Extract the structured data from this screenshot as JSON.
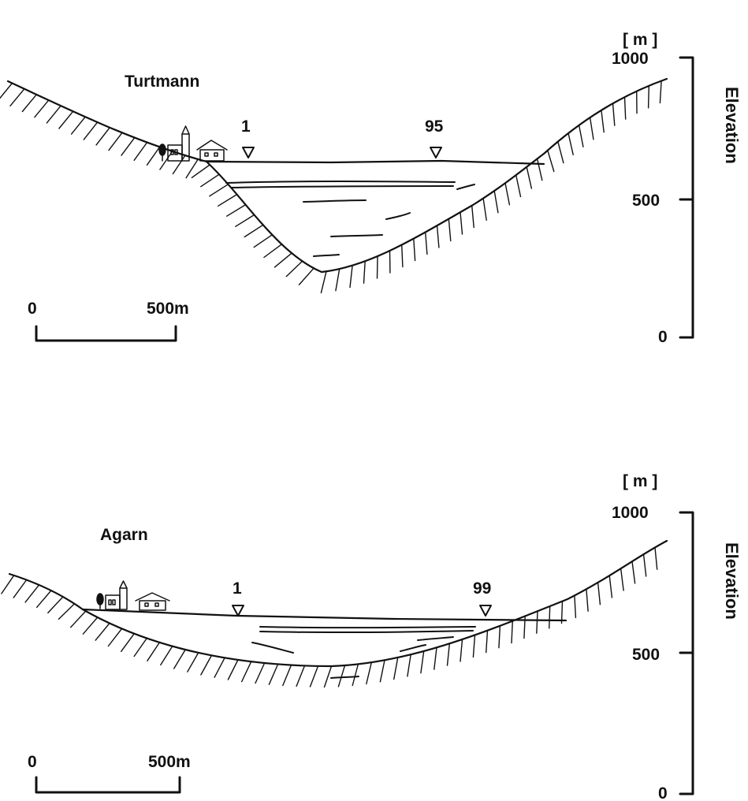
{
  "panels": [
    {
      "id": "turtmann",
      "name": "Turtmann",
      "wells": [
        "1",
        "95"
      ],
      "scale": {
        "start": "0",
        "end": "500m"
      },
      "elevation_axis": {
        "unit": "[ m ]",
        "ticks": [
          "1000",
          "500",
          "0"
        ],
        "label": "Elevation"
      }
    },
    {
      "id": "agarn",
      "name": "Agarn",
      "wells": [
        "1",
        "99"
      ],
      "scale": {
        "start": "0",
        "end": "500m"
      },
      "elevation_axis": {
        "unit": "[ m ]",
        "ticks": [
          "1000",
          "500",
          "0"
        ],
        "label": "Elevation"
      }
    }
  ],
  "colors": {
    "ink": "#111111",
    "background": "#ffffff"
  }
}
